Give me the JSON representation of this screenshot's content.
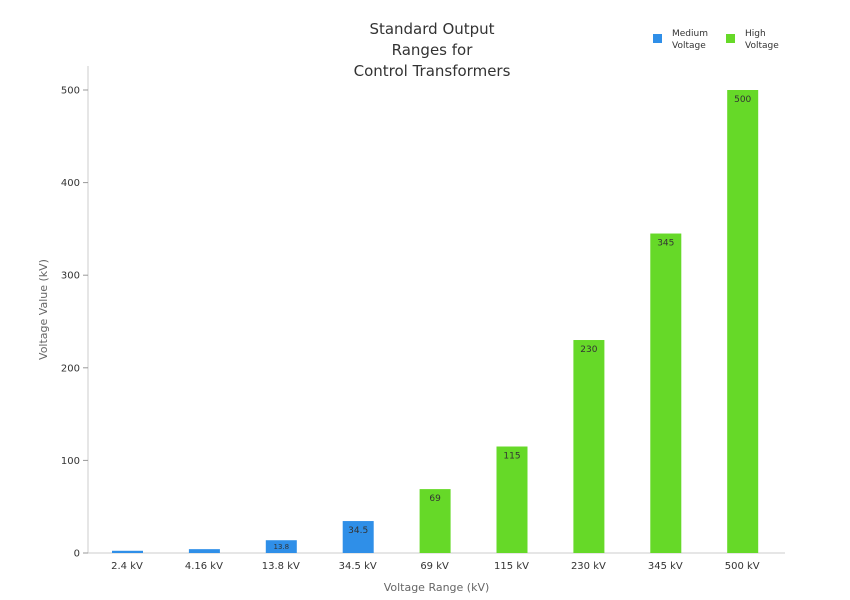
{
  "chart_data": {
    "type": "bar",
    "title_lines": [
      "Standard Output",
      "Ranges for",
      "Control Transformers"
    ],
    "xlabel": "Voltage Range (kV)",
    "ylabel": "Voltage Value (kV)",
    "categories": [
      "2.4 kV",
      "4.16 kV",
      "13.8 kV",
      "34.5 kV",
      "69 kV",
      "115 kV",
      "230 kV",
      "345 kV",
      "500 kV"
    ],
    "series": [
      {
        "name_lines": [
          "Medium",
          "Voltage"
        ],
        "color": "#2f8fe8",
        "values": [
          2.4,
          4.16,
          13.8,
          34.5,
          null,
          null,
          null,
          null,
          null
        ],
        "labels": [
          "",
          "",
          "13.8",
          "34.5",
          "",
          "",
          "",
          "",
          ""
        ]
      },
      {
        "name_lines": [
          "High",
          "Voltage"
        ],
        "color": "#66d928",
        "values": [
          null,
          null,
          null,
          null,
          69,
          115,
          230,
          345,
          500
        ],
        "labels": [
          "",
          "",
          "",
          "",
          "69",
          "115",
          "230",
          "345",
          "500"
        ]
      }
    ],
    "yticks": [
      0,
      100,
      200,
      300,
      400,
      500
    ],
    "ylim": [
      0,
      525
    ],
    "grid": false,
    "legend_position": "top-right"
  }
}
